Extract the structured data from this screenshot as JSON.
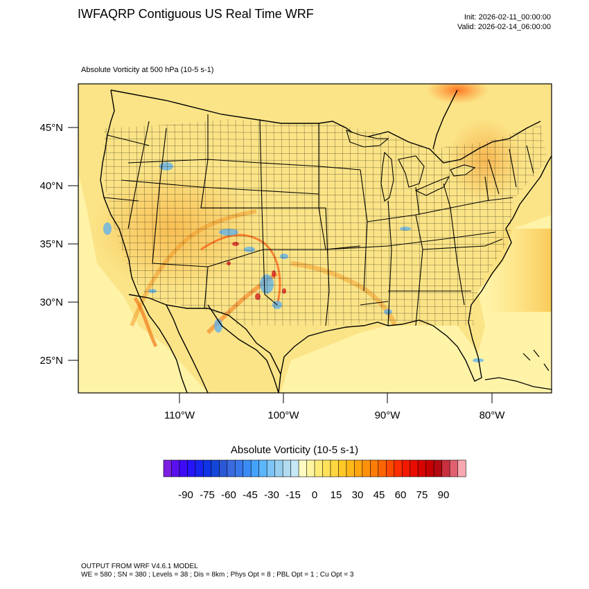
{
  "header": {
    "title": "IWFAQRP Contiguous US Real Time WRF",
    "init": "Init: 2026-02-11_00:00:00",
    "valid": "Valid: 2026-02-14_06:00:00"
  },
  "field": {
    "label": "Absolute Vorticity at 500 hPa   (10-5 s-1)"
  },
  "map": {
    "lat_ticks": [
      "45°N",
      "40°N",
      "35°N",
      "30°N",
      "25°N"
    ],
    "lon_ticks": [
      "110°W",
      "100°W",
      "90°W",
      "80°W"
    ],
    "colors": {
      "land_base": "#fbe487",
      "ocean_base": "#fff3a8",
      "border": "#000000"
    }
  },
  "colorbar": {
    "title": "Absolute Vorticity  (10-5 s-1)",
    "tick_labels": [
      "-90",
      "-75",
      "-60",
      "-45",
      "-30",
      "-15",
      "0",
      "15",
      "30",
      "45",
      "60",
      "75",
      "90"
    ],
    "colors": [
      "#7b1fe0",
      "#5a10ee",
      "#3f0af5",
      "#2814fb",
      "#1824f0",
      "#1034e6",
      "#1546da",
      "#2a58d6",
      "#3a6ae0",
      "#3878ea",
      "#3a8cf4",
      "#45a2fa",
      "#5bb6fb",
      "#7cc4f5",
      "#99d0f0",
      "#b1dcf1",
      "#c6e7f5",
      "#fffbc2",
      "#fff5a0",
      "#ffec78",
      "#ffe25a",
      "#ffd640",
      "#ffc826",
      "#ffb818",
      "#ffa610",
      "#ff920a",
      "#ff7c06",
      "#ff6403",
      "#ff4a01",
      "#ff2e00",
      "#f41800",
      "#e80c00",
      "#d80400",
      "#c40000",
      "#b20a10",
      "#c83040",
      "#e06070",
      "#f8a8b0"
    ]
  },
  "footer": {
    "line1": "OUTPUT FROM WRF V4.6.1 MODEL",
    "line2": "WE = 580 ; SN = 380 ; Levels = 38 ; Dis = 8km ; Phys Opt = 8 ; PBL Opt = 1 ; Cu Opt = 3"
  }
}
